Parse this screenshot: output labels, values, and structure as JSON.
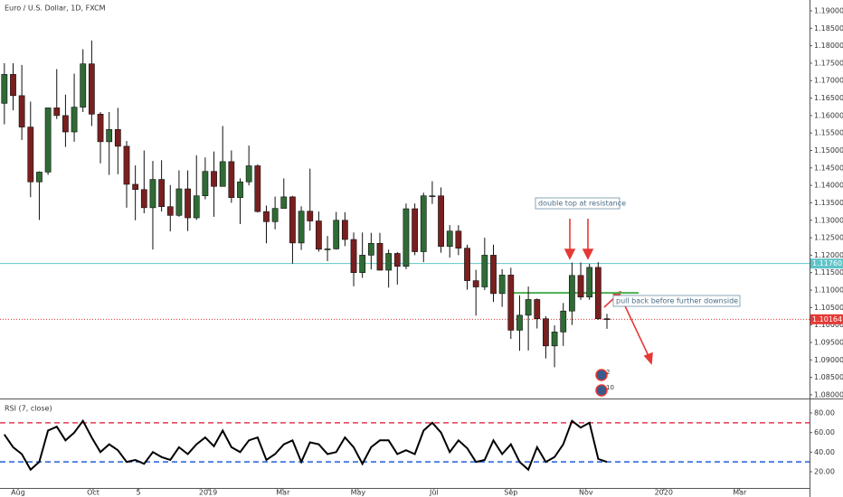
{
  "chart_data": [
    {
      "type": "candlestick",
      "title": "Euro / U.S. Dollar, 1D, FXCM",
      "open": [
        1.1635,
        1.1718,
        1.1657,
        1.1567,
        1.141,
        1.1438,
        1.1622,
        1.16,
        1.1553,
        1.1624,
        1.1748,
        1.1604,
        1.1525,
        1.156,
        1.1512,
        1.1403,
        1.1388,
        1.1336,
        1.1417,
        1.1339,
        1.1314,
        1.139,
        1.1307,
        1.137,
        1.144,
        1.1397,
        1.1468,
        1.1365,
        1.141,
        1.1456,
        1.1325,
        1.1296,
        1.1334,
        1.1367,
        1.1235,
        1.1326,
        1.1298,
        1.1217,
        1.1218,
        1.13,
        1.1245,
        1.115,
        1.12,
        1.1234,
        1.1157,
        1.1205,
        1.1168,
        1.1333,
        1.121,
        1.137,
        1.137,
        1.1225,
        1.1269,
        1.122,
        1.1127,
        1.1109,
        1.12,
        1.109,
        1.1143,
        1.0985,
        1.1028,
        1.1073,
        1.1018,
        1.094,
        1.098,
        1.104,
        1.1142,
        1.108,
        1.1165,
        1.1018
      ],
      "high": [
        1.175,
        1.175,
        1.1745,
        1.164,
        1.144,
        1.1623,
        1.1733,
        1.166,
        1.172,
        1.179,
        1.1815,
        1.161,
        1.161,
        1.1622,
        1.1527,
        1.1457,
        1.15,
        1.147,
        1.1472,
        1.1401,
        1.1443,
        1.1443,
        1.1486,
        1.148,
        1.1497,
        1.157,
        1.15,
        1.142,
        1.1514,
        1.146,
        1.1342,
        1.1368,
        1.142,
        1.137,
        1.134,
        1.1448,
        1.1325,
        1.1255,
        1.1324,
        1.1323,
        1.1265,
        1.1265,
        1.1264,
        1.1264,
        1.1216,
        1.1209,
        1.1348,
        1.1348,
        1.1379,
        1.1412,
        1.1394,
        1.1286,
        1.1286,
        1.123,
        1.1158,
        1.125,
        1.123,
        1.116,
        1.1164,
        1.1085,
        1.111,
        1.1076,
        1.1025,
        1.0999,
        1.1063,
        1.1179,
        1.1179,
        1.1175,
        1.118,
        1.1032
      ],
      "low": [
        1.1575,
        1.1615,
        1.153,
        1.1366,
        1.1301,
        1.143,
        1.159,
        1.151,
        1.1525,
        1.161,
        1.157,
        1.1463,
        1.143,
        1.1432,
        1.1336,
        1.13,
        1.132,
        1.1216,
        1.1325,
        1.1268,
        1.131,
        1.1269,
        1.1301,
        1.136,
        1.131,
        1.1397,
        1.135,
        1.1289,
        1.14,
        1.1322,
        1.1234,
        1.1274,
        1.134,
        1.1176,
        1.1215,
        1.127,
        1.121,
        1.1183,
        1.1216,
        1.1226,
        1.1111,
        1.1135,
        1.1159,
        1.1156,
        1.1107,
        1.1116,
        1.116,
        1.12,
        1.118,
        1.1347,
        1.1207,
        1.1193,
        1.12,
        1.1101,
        1.1027,
        1.11,
        1.1066,
        1.1052,
        1.096,
        1.0926,
        1.0927,
        1.099,
        1.0904,
        1.0879,
        1.094,
        1.1,
        1.1072,
        1.1072,
        1.1015,
        1.0989
      ],
      "close": [
        1.1718,
        1.1657,
        1.1567,
        1.141,
        1.1438,
        1.1622,
        1.16,
        1.1553,
        1.1624,
        1.1748,
        1.1604,
        1.1525,
        1.156,
        1.1512,
        1.1403,
        1.1388,
        1.1336,
        1.1417,
        1.1339,
        1.1314,
        1.139,
        1.1307,
        1.137,
        1.144,
        1.1397,
        1.1468,
        1.1365,
        1.141,
        1.1456,
        1.1325,
        1.1296,
        1.1334,
        1.1367,
        1.1235,
        1.1326,
        1.1298,
        1.1217,
        1.1218,
        1.13,
        1.1245,
        1.115,
        1.12,
        1.1234,
        1.1157,
        1.1205,
        1.1168,
        1.1333,
        1.121,
        1.137,
        1.137,
        1.1225,
        1.1269,
        1.122,
        1.1127,
        1.1109,
        1.12,
        1.109,
        1.1143,
        1.0985,
        1.1028,
        1.1073,
        1.1018,
        1.094,
        1.098,
        1.104,
        1.1142,
        1.108,
        1.1165,
        1.1018,
        1.1016
      ],
      "up_color": "#2f6b35",
      "down_color": "#7a1f1f",
      "xlim": [
        0,
        92.7
      ],
      "ylim": [
        1.0792,
        1.1931
      ],
      "yticks": [
        {
          "value": 1.08,
          "label": "1.08000"
        },
        {
          "value": 1.085,
          "label": "1.08500"
        },
        {
          "value": 1.09,
          "label": "1.09000"
        },
        {
          "value": 1.095,
          "label": "1.09500"
        },
        {
          "value": 1.1,
          "label": "1.10000"
        },
        {
          "value": 1.105,
          "label": "1.10500"
        },
        {
          "value": 1.11,
          "label": "1.11000"
        },
        {
          "value": 1.115,
          "label": "1.11500"
        },
        {
          "value": 1.12,
          "label": "1.12000"
        },
        {
          "value": 1.125,
          "label": "1.12500"
        },
        {
          "value": 1.13,
          "label": "1.13000"
        },
        {
          "value": 1.135,
          "label": "1.13500"
        },
        {
          "value": 1.14,
          "label": "1.14000"
        },
        {
          "value": 1.145,
          "label": "1.14500"
        },
        {
          "value": 1.15,
          "label": "1.15000"
        },
        {
          "value": 1.155,
          "label": "1.15500"
        },
        {
          "value": 1.16,
          "label": "1.16000"
        },
        {
          "value": 1.165,
          "label": "1.16500"
        },
        {
          "value": 1.17,
          "label": "1.17000"
        },
        {
          "value": 1.175,
          "label": "1.17500"
        },
        {
          "value": 1.18,
          "label": "1.18000"
        },
        {
          "value": 1.185,
          "label": "1.18500"
        },
        {
          "value": 1.19,
          "label": "1.19000"
        }
      ],
      "resistance": {
        "value": 1.1176,
        "label": "1.11760",
        "color": "#5fc4c8"
      },
      "last_price": {
        "value": 1.10164,
        "label": "1.10164",
        "color": "#e53935"
      },
      "neckline": {
        "value": 1.1092,
        "color": "#4caf50"
      },
      "annotations": [
        "double top at resistance",
        "pull back before further downside"
      ],
      "events": [
        "2",
        "10"
      ]
    },
    {
      "type": "line",
      "title": "RSI (7, close)",
      "values": [
        58,
        45,
        38,
        22,
        30,
        62,
        66,
        52,
        60,
        72,
        55,
        40,
        48,
        42,
        30,
        32,
        28,
        40,
        35,
        32,
        45,
        38,
        48,
        55,
        46,
        62,
        45,
        40,
        52,
        55,
        32,
        38,
        48,
        52,
        30,
        50,
        48,
        38,
        40,
        55,
        45,
        28,
        45,
        52,
        52,
        38,
        42,
        38,
        62,
        70,
        60,
        40,
        52,
        44,
        30,
        32,
        52,
        38,
        48,
        30,
        22,
        45,
        30,
        35,
        48,
        72,
        65,
        70,
        33,
        30
      ],
      "color": "#000000",
      "xlim": [
        0,
        92.7
      ],
      "ylim": [
        3.4,
        92.9
      ],
      "yticks": [
        {
          "value": 20,
          "label": "20.00"
        },
        {
          "value": 40,
          "label": "40.00"
        },
        {
          "value": 60,
          "label": "60.00"
        },
        {
          "value": 80,
          "label": "80.00"
        }
      ],
      "levels": [
        {
          "value": 70,
          "color": "#e53950"
        },
        {
          "value": 30,
          "color": "#1e5fd8"
        }
      ],
      "xticks": [
        {
          "value": 2.07,
          "label": "Aug"
        },
        {
          "value": 10.67,
          "label": "Oct"
        },
        {
          "value": 15.85,
          "label": "5"
        },
        {
          "value": 23.83,
          "label": "2019"
        },
        {
          "value": 32.4,
          "label": "Mar"
        },
        {
          "value": 41.0,
          "label": "May"
        },
        {
          "value": 49.7,
          "label": "Jul"
        },
        {
          "value": 58.5,
          "label": "Sep"
        },
        {
          "value": 67.1,
          "label": "Nov"
        },
        {
          "value": 76.0,
          "label": "2020"
        },
        {
          "value": 84.7,
          "label": "Mar"
        }
      ]
    }
  ]
}
